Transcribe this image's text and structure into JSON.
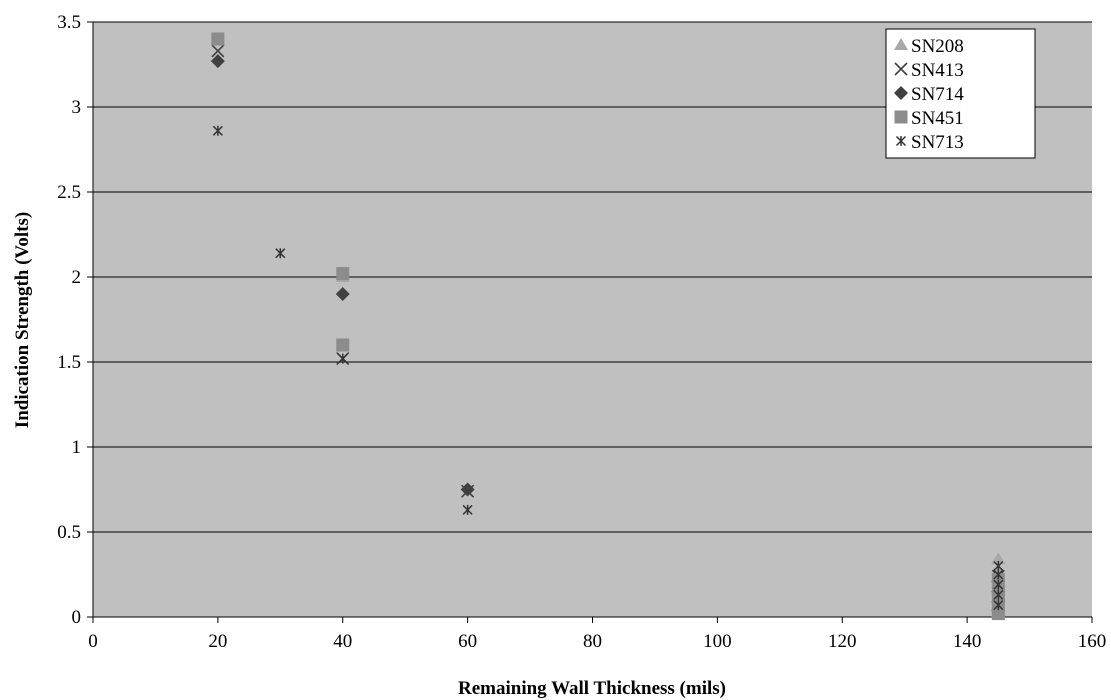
{
  "chart_data": {
    "type": "scatter",
    "xlabel": "Remaining Wall Thickness (mils)",
    "ylabel": "Indication Strength (Volts)",
    "xlim": [
      0,
      160
    ],
    "ylim": [
      0,
      3.5
    ],
    "x_ticks": [
      "0",
      "20",
      "40",
      "60",
      "80",
      "100",
      "120",
      "140",
      "160"
    ],
    "y_ticks": [
      "0",
      "0.5",
      "1",
      "1.5",
      "2",
      "2.5",
      "3",
      "3.5"
    ],
    "grid": "horizontal",
    "legend_position": "top-right",
    "plot_background": "#c0c0c0",
    "series": [
      {
        "name": "SN208",
        "marker": "triangle",
        "color": "#a8a8a8",
        "points": [
          [
            20,
            3.4
          ],
          [
            40,
            2.0
          ],
          [
            40,
            1.6
          ],
          [
            145,
            0.34
          ],
          [
            145,
            0.26
          ],
          [
            145,
            0.2
          ],
          [
            145,
            0.14
          ],
          [
            145,
            0.08
          ],
          [
            145,
            0.03
          ]
        ]
      },
      {
        "name": "SN413",
        "marker": "x",
        "color": "#404040",
        "points": [
          [
            20,
            3.33
          ],
          [
            40,
            1.52
          ],
          [
            60,
            0.74
          ],
          [
            145,
            0.24
          ],
          [
            145,
            0.16
          ],
          [
            145,
            0.1
          ],
          [
            145,
            0.05
          ]
        ]
      },
      {
        "name": "SN714",
        "marker": "diamond",
        "color": "#404040",
        "points": [
          [
            20,
            3.27
          ],
          [
            40,
            1.9
          ],
          [
            60,
            0.75
          ],
          [
            145,
            0.21
          ],
          [
            145,
            0.15
          ],
          [
            145,
            0.09
          ],
          [
            145,
            0.04
          ]
        ]
      },
      {
        "name": "SN451",
        "marker": "square",
        "color": "#8c8c8c",
        "points": [
          [
            20,
            3.4
          ],
          [
            40,
            2.02
          ],
          [
            40,
            1.6
          ],
          [
            145,
            0.22
          ],
          [
            145,
            0.16
          ],
          [
            145,
            0.11
          ],
          [
            145,
            0.06
          ],
          [
            145,
            0.02
          ]
        ]
      },
      {
        "name": "SN713",
        "marker": "asterisk",
        "color": "#333333",
        "points": [
          [
            20,
            2.86
          ],
          [
            30,
            2.14
          ],
          [
            40,
            1.52
          ],
          [
            60,
            0.63
          ],
          [
            145,
            0.3
          ],
          [
            145,
            0.25
          ],
          [
            145,
            0.19
          ],
          [
            145,
            0.13
          ],
          [
            145,
            0.07
          ]
        ]
      }
    ]
  }
}
